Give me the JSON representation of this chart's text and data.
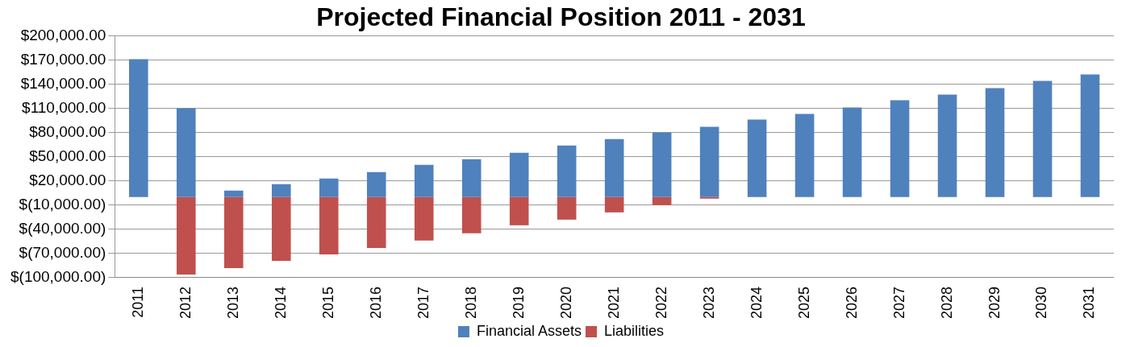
{
  "chart_data": {
    "type": "bar",
    "title": "Projected Financial Position 2011 - 2031",
    "categories": [
      "2011",
      "2012",
      "2013",
      "2014",
      "2015",
      "2016",
      "2017",
      "2018",
      "2019",
      "2020",
      "2021",
      "2022",
      "2023",
      "2024",
      "2025",
      "2026",
      "2027",
      "2028",
      "2029",
      "2030",
      "2031"
    ],
    "series": [
      {
        "name": "Financial Assets",
        "color": "#4f81bd",
        "values": [
          171000,
          110000,
          8000,
          16000,
          23000,
          31000,
          40000,
          47000,
          55000,
          64000,
          72000,
          80000,
          87000,
          96000,
          103000,
          111000,
          120000,
          127000,
          135000,
          144000,
          152000
        ]
      },
      {
        "name": "Liabilities",
        "color": "#c0504d",
        "values": [
          null,
          -96000,
          -88000,
          -79000,
          -71000,
          -63000,
          -54000,
          -45000,
          -35000,
          -28000,
          -19000,
          -10000,
          -2000,
          null,
          null,
          null,
          null,
          null,
          null,
          null,
          null
        ]
      }
    ],
    "stacked": true,
    "ylim": [
      -100000,
      200000
    ],
    "yticks": [
      {
        "value": -100000,
        "label": "$(100,000.00)"
      },
      {
        "value": -70000,
        "label": "$(70,000.00)"
      },
      {
        "value": -40000,
        "label": "$(40,000.00)"
      },
      {
        "value": -10000,
        "label": "$(10,000.00)"
      },
      {
        "value": 20000,
        "label": "$20,000.00"
      },
      {
        "value": 50000,
        "label": "$50,000.00"
      },
      {
        "value": 80000,
        "label": "$80,000.00"
      },
      {
        "value": 110000,
        "label": "$110,000.00"
      },
      {
        "value": 140000,
        "label": "$140,000.00"
      },
      {
        "value": 170000,
        "label": "$170,000.00"
      },
      {
        "value": 200000,
        "label": "$200,000.00"
      }
    ],
    "grid": "y",
    "legend": "bottom"
  }
}
